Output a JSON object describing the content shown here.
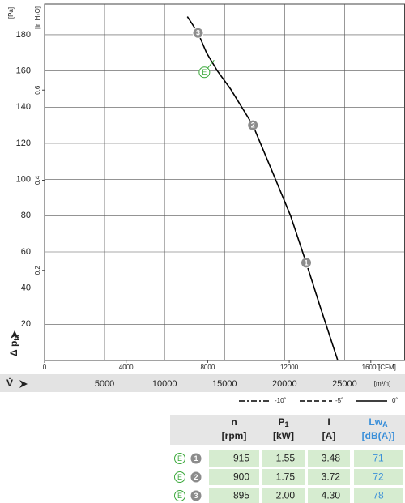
{
  "chart_data": {
    "type": "line",
    "y_label": {
      "text": "Δ p",
      "sub": "fa"
    },
    "y_unit": "[Pa]",
    "y2_unit": "[in H₂O]",
    "x_label": "V̇",
    "x_unit": "[m³/h]",
    "x2_unit": "[CFM]",
    "xlim": [
      0,
      30000
    ],
    "xticks": [
      5000,
      10000,
      15000,
      20000,
      25000
    ],
    "x2lim": [
      0,
      17657
    ],
    "x2ticks": [
      0,
      4000,
      8000,
      12000,
      16000
    ],
    "ylim": [
      0,
      197
    ],
    "yticks": [
      20,
      40,
      60,
      80,
      100,
      120,
      140,
      160,
      180
    ],
    "y2lim": [
      0,
      0.791
    ],
    "y2ticks": [
      {
        "value": 0.2,
        "label": "0,2"
      },
      {
        "value": 0.4,
        "label": "0,4"
      },
      {
        "value": 0.6,
        "label": "0,6"
      }
    ],
    "grid": true,
    "series": [
      {
        "color": "#000000",
        "x": [
          11900,
          12790,
          13500,
          14400,
          15500,
          17360,
          19000,
          20500,
          21800,
          23000,
          24430
        ],
        "values": [
          190,
          181,
          170,
          160,
          150,
          130,
          104,
          80,
          54,
          29,
          0
        ]
      }
    ],
    "points": [
      {
        "label": "1",
        "x": 21800,
        "y": 54
      },
      {
        "label": "2",
        "x": 17360,
        "y": 130
      },
      {
        "label": "3",
        "x": 12790,
        "y": 181
      }
    ],
    "annotation": {
      "label": "E",
      "x": 14130,
      "y": 166,
      "color": "#3aa83a"
    },
    "legend": [
      {
        "label": "-10˚",
        "style": "dash-dot"
      },
      {
        "label": "-5˚",
        "style": "dashed"
      },
      {
        "label": "0˚",
        "style": "solid"
      }
    ]
  },
  "table": {
    "header": [
      {
        "symbol": "n",
        "unit": "[rpm]"
      },
      {
        "symbol": "P",
        "sub": "1",
        "unit": "[kW]"
      },
      {
        "symbol": "I",
        "unit": "[A]"
      },
      {
        "symbol": "Lw",
        "sub": "A",
        "unit": "[dB(A)]",
        "color": "#3a8fd9"
      }
    ],
    "rows": [
      {
        "mark": "E",
        "point": "1",
        "cells": [
          "915",
          "1.55",
          "3.48",
          "71"
        ]
      },
      {
        "mark": "E",
        "point": "2",
        "cells": [
          "900",
          "1.75",
          "3.72",
          "72"
        ]
      },
      {
        "mark": "E",
        "point": "3",
        "cells": [
          "895",
          "2.00",
          "4.30",
          "78"
        ]
      }
    ]
  }
}
